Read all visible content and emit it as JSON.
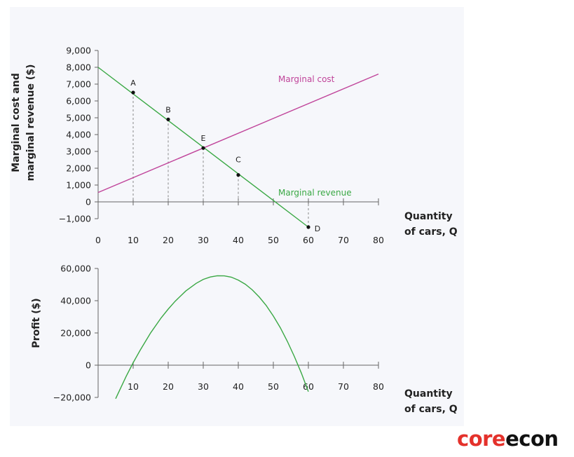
{
  "brand": {
    "part1": "core",
    "part2": "econ",
    "color1": "#e4312b",
    "color2": "#111111"
  },
  "chart_data": [
    {
      "type": "line",
      "title": "",
      "xlabel_lines": [
        "Quantity",
        "of cars, Q"
      ],
      "ylabel_lines": [
        "Marginal cost and",
        "marginal revenue ($)"
      ],
      "xlim": [
        0,
        80
      ],
      "ylim": [
        -1000,
        9000
      ],
      "x_ticks": [
        0,
        10,
        20,
        30,
        40,
        50,
        60,
        70,
        80
      ],
      "x_tick_labels": [
        "0",
        "10",
        "20",
        "30",
        "40",
        "50",
        "60",
        "70",
        "80"
      ],
      "y_ticks": [
        -1000,
        0,
        1000,
        2000,
        3000,
        4000,
        5000,
        6000,
        7000,
        8000,
        9000
      ],
      "y_tick_labels": [
        "−1,000",
        "0",
        "1,000",
        "2,000",
        "3,000",
        "4,000",
        "5,000",
        "6,000",
        "7,000",
        "8,000",
        "9,000"
      ],
      "series": [
        {
          "name": "Marginal cost",
          "color": "#c0449a",
          "x": [
            0,
            80
          ],
          "values": [
            560,
            7600
          ]
        },
        {
          "name": "Marginal revenue",
          "color": "#3aa844",
          "x": [
            0,
            60
          ],
          "values": [
            8000,
            -1500
          ]
        }
      ],
      "points": [
        {
          "label": "A",
          "x": 10,
          "y": 6500,
          "dropline": true
        },
        {
          "label": "B",
          "x": 20,
          "y": 4900,
          "dropline": true
        },
        {
          "label": "E",
          "x": 30,
          "y": 3200,
          "dropline": true
        },
        {
          "label": "C",
          "x": 40,
          "y": 1600,
          "dropline": true
        },
        {
          "label": "D",
          "x": 60,
          "y": -1500,
          "dropline": true
        }
      ],
      "grid": false
    },
    {
      "type": "line",
      "title": "",
      "xlabel_lines": [
        "Quantity",
        "of cars, Q"
      ],
      "ylabel_lines": [
        "Profit ($)"
      ],
      "xlim": [
        0,
        80
      ],
      "ylim": [
        -20000,
        60000
      ],
      "x_ticks": [
        10,
        20,
        30,
        40,
        50,
        60,
        70,
        80
      ],
      "x_tick_labels": [
        "10",
        "20",
        "30",
        "40",
        "50",
        "60",
        "70",
        "80"
      ],
      "y_ticks": [
        -20000,
        0,
        20000,
        40000,
        60000
      ],
      "y_tick_labels": [
        "−20,000",
        "0",
        "20,000",
        "40,000",
        "60,000"
      ],
      "series": [
        {
          "name": "Profit",
          "color": "#3aa844",
          "x": [
            5,
            8,
            10,
            12,
            15,
            18,
            20,
            22,
            25,
            28,
            30,
            32,
            34,
            36,
            38,
            40,
            42,
            44,
            46,
            48,
            50,
            52,
            54,
            56,
            58,
            60
          ],
          "values": [
            -20800,
            -6900,
            1500,
            9300,
            20100,
            29400,
            34800,
            39700,
            46000,
            50800,
            53200,
            54700,
            55500,
            55400,
            54600,
            52800,
            50200,
            46700,
            42200,
            36900,
            30500,
            23200,
            14800,
            5400,
            -4900,
            -16400
          ]
        }
      ],
      "grid": false
    }
  ]
}
